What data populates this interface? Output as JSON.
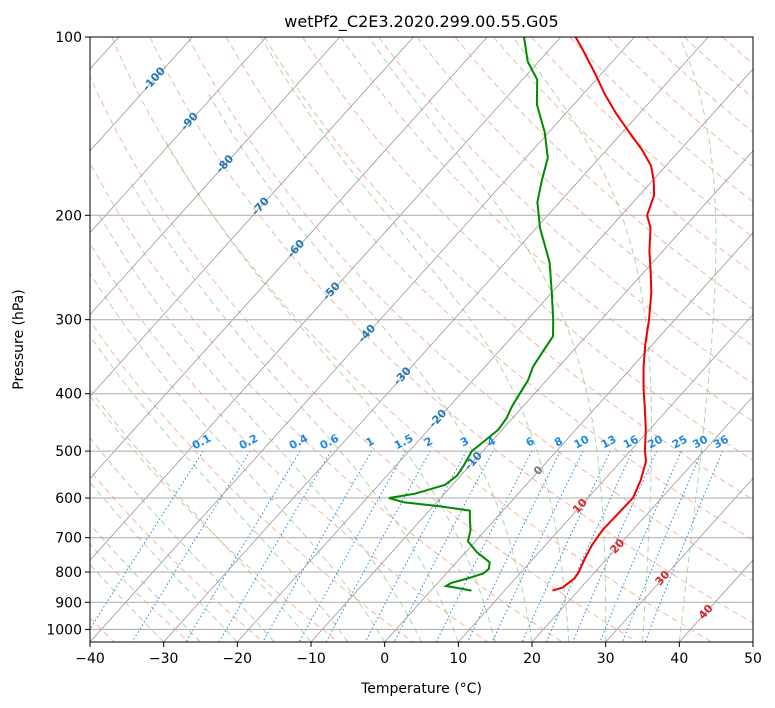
{
  "chart_data": {
    "type": "line",
    "subtype": "skew-T log-P diagram",
    "title": "wetPf2_C2E3.2020.299.00.55.G05",
    "xlabel": "Temperature (°C)",
    "ylabel": "Pressure (hPa)",
    "xlim": [
      -40,
      50
    ],
    "ylim": [
      1050,
      100
    ],
    "y_scale": "log",
    "x_ticks": [
      -40,
      -30,
      -20,
      -10,
      0,
      10,
      20,
      30,
      40,
      50
    ],
    "x_tick_labels": [
      "−40",
      "−30",
      "−20",
      "−10",
      "0",
      "10",
      "20",
      "30",
      "40",
      "50"
    ],
    "y_ticks": [
      1000,
      900,
      800,
      700,
      600,
      500,
      400,
      300,
      200,
      100
    ],
    "y_tick_labels": [
      "1000",
      "900",
      "800",
      "700",
      "600",
      "500",
      "400",
      "300",
      "200",
      "100"
    ],
    "grid": true,
    "colors": {
      "temperature": "#ee0000",
      "dewpoint": "#008800",
      "isotherm": "#999999",
      "dry_adiabat": "#f0a080",
      "moist_adiabat": "#90c890",
      "mixing_ratio": "#1e88e5",
      "isotherm_label": "#1f77b4",
      "positive_label": "#d62728",
      "zero_label": "#777777",
      "gridline": "#aaaaaa"
    },
    "series": [
      {
        "name": "temperature",
        "pressure": [
          860,
          850,
          820,
          800,
          760,
          720,
          680,
          640,
          600,
          560,
          520,
          500,
          460,
          420,
          390,
          360,
          330,
          300,
          270,
          250,
          230,
          210,
          200,
          185,
          175,
          165,
          155,
          145,
          135,
          125,
          115,
          105,
          100
        ],
        "values": [
          16.5,
          17.5,
          18.0,
          17.8,
          17.0,
          16.3,
          15.9,
          16.0,
          16.1,
          15.0,
          13.4,
          12.0,
          9.5,
          6.5,
          4.0,
          1.5,
          -1.0,
          -3.5,
          -6.5,
          -9.0,
          -11.8,
          -14.5,
          -16.5,
          -18.0,
          -19.8,
          -22.0,
          -25.2,
          -29.0,
          -33.0,
          -37.0,
          -41.0,
          -45.5,
          -48.0
        ]
      },
      {
        "name": "dewpoint",
        "pressure": [
          860,
          850,
          845,
          835,
          820,
          805,
          790,
          770,
          740,
          710,
          680,
          650,
          630,
          620,
          610,
          600,
          590,
          570,
          550,
          530,
          500,
          480,
          460,
          440,
          420,
          400,
          380,
          360,
          340,
          320,
          300,
          270,
          240,
          210,
          190,
          175,
          160,
          145,
          130,
          118,
          110,
          100
        ],
        "values": [
          5.5,
          3.0,
          1.5,
          1.8,
          3.5,
          5.0,
          5.2,
          4.5,
          1.5,
          -1.0,
          -2.0,
          -3.5,
          -4.5,
          -9.0,
          -14.5,
          -17.0,
          -14.0,
          -11.0,
          -10.5,
          -10.8,
          -11.5,
          -11.0,
          -10.5,
          -10.8,
          -11.5,
          -12.0,
          -12.5,
          -13.5,
          -14.0,
          -14.5,
          -16.5,
          -20.0,
          -24.0,
          -29.5,
          -33.0,
          -35.0,
          -37.0,
          -40.5,
          -45.0,
          -48.0,
          -51.5,
          -55.0
        ]
      }
    ],
    "isotherm_labels": [
      "-100",
      "-90",
      "-80",
      "-70",
      "-60",
      "-50",
      "-40",
      "-30",
      "-20",
      "-10",
      "0",
      "10",
      "20",
      "30",
      "40"
    ],
    "mixing_ratio_labels": [
      "0.1",
      "0.2",
      "0.4",
      "0.6",
      "1",
      "1.5",
      "2",
      "3",
      "4",
      "6",
      "8",
      "10",
      "13",
      "16",
      "20",
      "25",
      "30",
      "36"
    ]
  }
}
